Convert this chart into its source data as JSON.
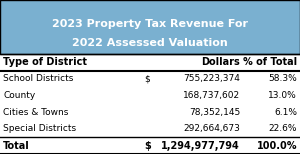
{
  "title_line1": "2023 Property Tax Revenue For",
  "title_line2": "2022 Assessed Valuation",
  "header_bg": "#7ab0d0",
  "header_text_color": "#ffffff",
  "col_headers": [
    "Type of District",
    "Dollars",
    "% of Total"
  ],
  "rows": [
    [
      "School Districts",
      "$",
      "755,223,374",
      "58.3%"
    ],
    [
      "County",
      "",
      "168,737,602",
      "13.0%"
    ],
    [
      "Cities & Towns",
      "",
      "78,352,145",
      "6.1%"
    ],
    [
      "Special Districts",
      "",
      "292,664,673",
      "22.6%"
    ]
  ],
  "total_row": [
    "Total",
    "$",
    "1,294,977,794",
    "100.0%"
  ],
  "bg_color": "#ffffff",
  "table_text_color": "#000000",
  "border_color": "#000000"
}
